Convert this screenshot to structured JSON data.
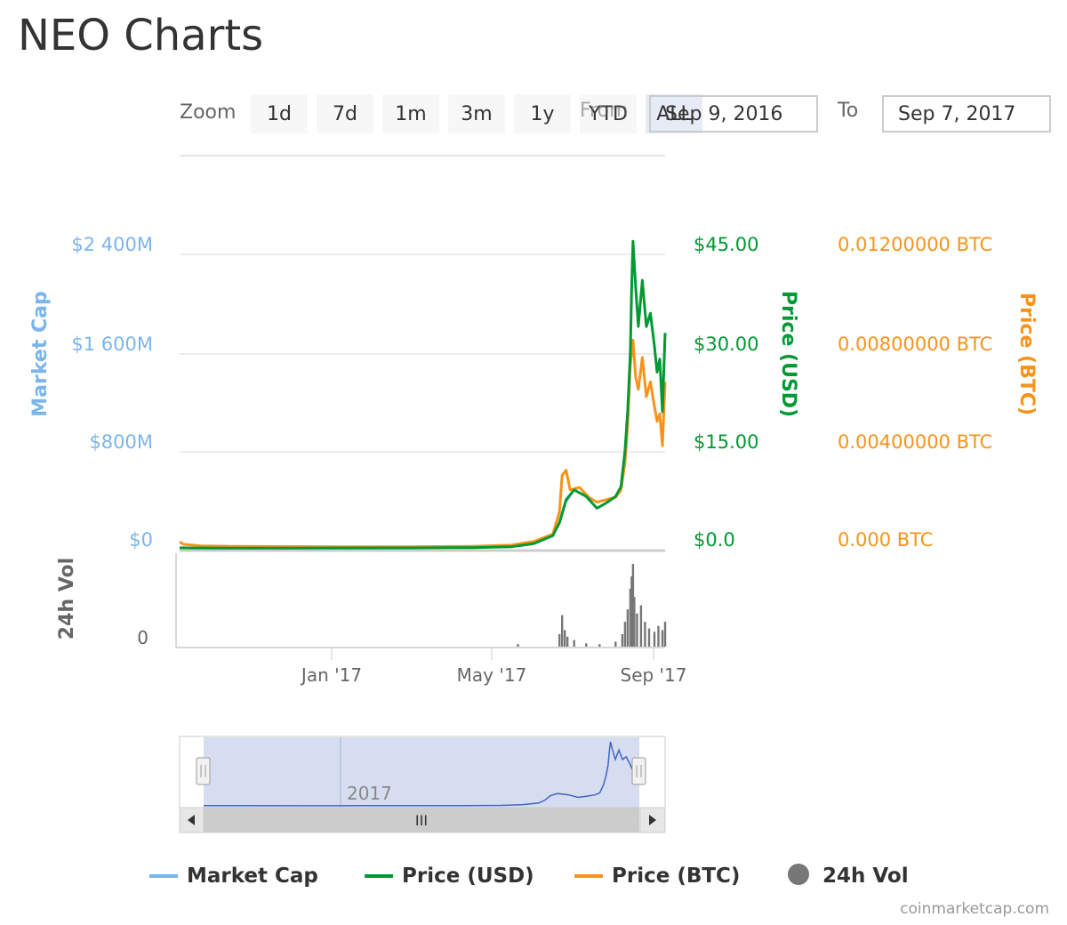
{
  "page": {
    "title": "NEO Charts",
    "credit": "coinmarketcap.com"
  },
  "toolbar": {
    "zoom_label": "Zoom",
    "buttons": [
      "1d",
      "7d",
      "1m",
      "3m",
      "1y",
      "YTD",
      "ALL"
    ],
    "active": "ALL",
    "from_label": "From",
    "from_value": "Sep 9, 2016",
    "to_label": "To",
    "to_value": "Sep 7, 2017"
  },
  "colors": {
    "market_cap": "#7cb5ec",
    "price_usd": "#009933",
    "price_btc": "#f7931a",
    "volume": "#777777",
    "navigator_fill": "#d6ddf0",
    "navigator_line": "#3f66c5"
  },
  "chart_data": {
    "type": "line",
    "x_range": [
      "2016-09-09",
      "2017-09-07"
    ],
    "x_tick_labels": [
      "Jan '17",
      "May '17",
      "Sep '17"
    ],
    "axes": {
      "market_cap": {
        "label": "Market Cap",
        "ticks": [
          "$0",
          "$800M",
          "$1 600M",
          "$2 400M"
        ],
        "range": [
          0,
          2400
        ]
      },
      "price_usd": {
        "label": "Price (USD)",
        "ticks": [
          "$0.0",
          "$15.00",
          "$30.00",
          "$45.00"
        ],
        "range": [
          0,
          45
        ]
      },
      "price_btc": {
        "label": "Price (BTC)",
        "ticks": [
          "0.000 BTC",
          "0.00400000 BTC",
          "0.00800000 BTC",
          "0.01200000 BTC"
        ],
        "range": [
          0,
          0.012
        ]
      },
      "volume": {
        "label": "24h Vol",
        "ticks": [
          "0"
        ]
      }
    },
    "series": [
      {
        "name": "Market Cap",
        "key": "market_cap",
        "unit": "$M",
        "points": [
          [
            "2016-09-09",
            10
          ],
          [
            "2016-09-20",
            8
          ],
          [
            "2016-10-15",
            6
          ],
          [
            "2016-12-01",
            5
          ],
          [
            "2017-01-15",
            6
          ],
          [
            "2017-03-01",
            8
          ],
          [
            "2017-04-15",
            10
          ],
          [
            "2017-05-15",
            15
          ],
          [
            "2017-06-01",
            40
          ],
          [
            "2017-06-15",
            110
          ],
          [
            "2017-06-20",
            200
          ],
          [
            "2017-06-25",
            380
          ],
          [
            "2017-07-01",
            480
          ],
          [
            "2017-07-10",
            430
          ],
          [
            "2017-07-18",
            330
          ],
          [
            "2017-07-25",
            370
          ],
          [
            "2017-08-01",
            420
          ],
          [
            "2017-08-05",
            500
          ],
          [
            "2017-08-08",
            780
          ],
          [
            "2017-08-10",
            1100
          ],
          [
            "2017-08-12",
            1600
          ],
          [
            "2017-08-13",
            2100
          ],
          [
            "2017-08-14",
            2500
          ],
          [
            "2017-08-16",
            2100
          ],
          [
            "2017-08-18",
            1800
          ],
          [
            "2017-08-21",
            2200
          ],
          [
            "2017-08-24",
            1800
          ],
          [
            "2017-08-27",
            1900
          ],
          [
            "2017-08-30",
            1650
          ],
          [
            "2017-09-01",
            1450
          ],
          [
            "2017-09-03",
            1550
          ],
          [
            "2017-09-05",
            1100
          ],
          [
            "2017-09-07",
            1750
          ]
        ]
      },
      {
        "name": "Price (USD)",
        "key": "price_usd",
        "unit": "USD",
        "points": [
          [
            "2016-09-09",
            0.15
          ],
          [
            "2016-09-20",
            0.12
          ],
          [
            "2016-10-15",
            0.1
          ],
          [
            "2016-12-01",
            0.09
          ],
          [
            "2017-01-15",
            0.12
          ],
          [
            "2017-03-01",
            0.14
          ],
          [
            "2017-04-15",
            0.18
          ],
          [
            "2017-05-15",
            0.3
          ],
          [
            "2017-06-01",
            0.8
          ],
          [
            "2017-06-15",
            2.0
          ],
          [
            "2017-06-20",
            4.0
          ],
          [
            "2017-06-25",
            7.5
          ],
          [
            "2017-07-01",
            9.0
          ],
          [
            "2017-07-10",
            8.0
          ],
          [
            "2017-07-18",
            6.2
          ],
          [
            "2017-07-25",
            7.0
          ],
          [
            "2017-08-01",
            8.0
          ],
          [
            "2017-08-05",
            9.5
          ],
          [
            "2017-08-08",
            15.0
          ],
          [
            "2017-08-10",
            21.0
          ],
          [
            "2017-08-12",
            30.0
          ],
          [
            "2017-08-13",
            40.0
          ],
          [
            "2017-08-14",
            47.0
          ],
          [
            "2017-08-16",
            40.0
          ],
          [
            "2017-08-18",
            34.0
          ],
          [
            "2017-08-21",
            41.0
          ],
          [
            "2017-08-24",
            34.0
          ],
          [
            "2017-08-27",
            36.0
          ],
          [
            "2017-08-30",
            31.0
          ],
          [
            "2017-09-01",
            27.0
          ],
          [
            "2017-09-03",
            29.0
          ],
          [
            "2017-09-05",
            21.0
          ],
          [
            "2017-09-07",
            33.0
          ]
        ]
      },
      {
        "name": "Price (BTC)",
        "key": "price_btc",
        "unit": "BTC",
        "points": [
          [
            "2016-09-09",
            0.00028
          ],
          [
            "2016-09-12",
            0.00018
          ],
          [
            "2016-09-25",
            0.00012
          ],
          [
            "2016-10-15",
            0.0001
          ],
          [
            "2016-12-01",
            9e-05
          ],
          [
            "2017-01-15",
            8e-05
          ],
          [
            "2017-03-01",
            8e-05
          ],
          [
            "2017-04-15",
            0.0001
          ],
          [
            "2017-05-15",
            0.00015
          ],
          [
            "2017-06-01",
            0.0003
          ],
          [
            "2017-06-15",
            0.0006
          ],
          [
            "2017-06-20",
            0.0015
          ],
          [
            "2017-06-22",
            0.003
          ],
          [
            "2017-06-25",
            0.0032
          ],
          [
            "2017-06-28",
            0.0024
          ],
          [
            "2017-07-05",
            0.0025
          ],
          [
            "2017-07-12",
            0.0021
          ],
          [
            "2017-07-18",
            0.0019
          ],
          [
            "2017-07-25",
            0.002
          ],
          [
            "2017-08-01",
            0.0021
          ],
          [
            "2017-08-05",
            0.0024
          ],
          [
            "2017-08-08",
            0.0035
          ],
          [
            "2017-08-10",
            0.005
          ],
          [
            "2017-08-12",
            0.0075
          ],
          [
            "2017-08-14",
            0.0085
          ],
          [
            "2017-08-16",
            0.007
          ],
          [
            "2017-08-18",
            0.0065
          ],
          [
            "2017-08-21",
            0.0078
          ],
          [
            "2017-08-24",
            0.0062
          ],
          [
            "2017-08-27",
            0.0068
          ],
          [
            "2017-08-30",
            0.0058
          ],
          [
            "2017-09-01",
            0.0052
          ],
          [
            "2017-09-03",
            0.0055
          ],
          [
            "2017-09-05",
            0.0042
          ],
          [
            "2017-09-07",
            0.0068
          ]
        ]
      },
      {
        "name": "24h Vol",
        "key": "volume",
        "unit": "relative",
        "points": [
          [
            "2017-05-20",
            0.03
          ],
          [
            "2017-06-20",
            0.15
          ],
          [
            "2017-06-22",
            0.38
          ],
          [
            "2017-06-24",
            0.2
          ],
          [
            "2017-06-26",
            0.12
          ],
          [
            "2017-07-01",
            0.08
          ],
          [
            "2017-07-10",
            0.04
          ],
          [
            "2017-07-20",
            0.03
          ],
          [
            "2017-08-01",
            0.06
          ],
          [
            "2017-08-06",
            0.15
          ],
          [
            "2017-08-08",
            0.3
          ],
          [
            "2017-08-10",
            0.45
          ],
          [
            "2017-08-12",
            0.7
          ],
          [
            "2017-08-13",
            0.85
          ],
          [
            "2017-08-14",
            1.0
          ],
          [
            "2017-08-15",
            0.6
          ],
          [
            "2017-08-17",
            0.4
          ],
          [
            "2017-08-20",
            0.5
          ],
          [
            "2017-08-23",
            0.3
          ],
          [
            "2017-08-26",
            0.22
          ],
          [
            "2017-08-30",
            0.18
          ],
          [
            "2017-09-02",
            0.25
          ],
          [
            "2017-09-05",
            0.2
          ],
          [
            "2017-09-07",
            0.3
          ]
        ]
      }
    ],
    "navigator": {
      "label": "2017",
      "scroll_grip": "III"
    },
    "legend": {
      "position": "bottom",
      "items": [
        "Market Cap",
        "Price (USD)",
        "Price (BTC)",
        "24h Vol"
      ]
    },
    "grid": true
  }
}
